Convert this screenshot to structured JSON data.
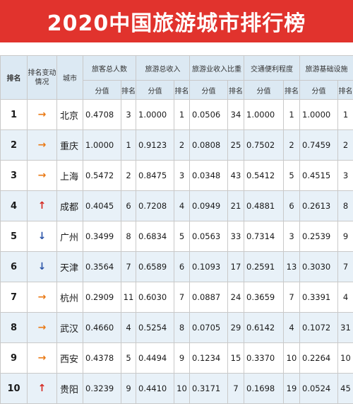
{
  "title": "2020中国旅游城市排行榜",
  "headers": {
    "rank": "排名",
    "change": "排名变动情况",
    "city": "城市",
    "groups": [
      "旅客总人数",
      "旅游总收入",
      "旅游业收入比重",
      "交通便利程度",
      "旅游基础设施"
    ],
    "score": "分值",
    "sub_rank": "排名"
  },
  "arrows": {
    "same": "→",
    "up": "↑",
    "down": "↓"
  },
  "colors": {
    "banner": "#e1332d",
    "header": "#dce9f3",
    "stripe": "#e8f1f8",
    "same": "#ea7a16",
    "up": "#d52a22",
    "down": "#2b54a8"
  },
  "rows": [
    {
      "rank": "1",
      "change": "same",
      "city": "北京",
      "metrics": [
        [
          "0.4708",
          "3"
        ],
        [
          "1.0000",
          "1"
        ],
        [
          "0.0506",
          "34"
        ],
        [
          "1.0000",
          "1"
        ],
        [
          "1.0000",
          "1"
        ]
      ]
    },
    {
      "rank": "2",
      "change": "same",
      "city": "重庆",
      "metrics": [
        [
          "1.0000",
          "1"
        ],
        [
          "0.9123",
          "2"
        ],
        [
          "0.0808",
          "25"
        ],
        [
          "0.7502",
          "2"
        ],
        [
          "0.7459",
          "2"
        ]
      ]
    },
    {
      "rank": "3",
      "change": "same",
      "city": "上海",
      "metrics": [
        [
          "0.5472",
          "2"
        ],
        [
          "0.8475",
          "3"
        ],
        [
          "0.0348",
          "43"
        ],
        [
          "0.5412",
          "5"
        ],
        [
          "0.4515",
          "3"
        ]
      ]
    },
    {
      "rank": "4",
      "change": "up",
      "city": "成都",
      "metrics": [
        [
          "0.4045",
          "6"
        ],
        [
          "0.7208",
          "4"
        ],
        [
          "0.0949",
          "21"
        ],
        [
          "0.4881",
          "6"
        ],
        [
          "0.2613",
          "8"
        ]
      ]
    },
    {
      "rank": "5",
      "change": "down",
      "city": "广州",
      "metrics": [
        [
          "0.3499",
          "8"
        ],
        [
          "0.6834",
          "5"
        ],
        [
          "0.0563",
          "33"
        ],
        [
          "0.7314",
          "3"
        ],
        [
          "0.2539",
          "9"
        ]
      ]
    },
    {
      "rank": "6",
      "change": "down",
      "city": "天津",
      "metrics": [
        [
          "0.3564",
          "7"
        ],
        [
          "0.6589",
          "6"
        ],
        [
          "0.1093",
          "17"
        ],
        [
          "0.2591",
          "13"
        ],
        [
          "0.3030",
          "7"
        ]
      ]
    },
    {
      "rank": "7",
      "change": "same",
      "city": "杭州",
      "metrics": [
        [
          "0.2909",
          "11"
        ],
        [
          "0.6030",
          "7"
        ],
        [
          "0.0887",
          "24"
        ],
        [
          "0.3659",
          "7"
        ],
        [
          "0.3391",
          "4"
        ]
      ]
    },
    {
      "rank": "8",
      "change": "same",
      "city": "武汉",
      "metrics": [
        [
          "0.4660",
          "4"
        ],
        [
          "0.5254",
          "8"
        ],
        [
          "0.0705",
          "29"
        ],
        [
          "0.6142",
          "4"
        ],
        [
          "0.1072",
          "31"
        ]
      ]
    },
    {
      "rank": "9",
      "change": "same",
      "city": "西安",
      "metrics": [
        [
          "0.4378",
          "5"
        ],
        [
          "0.4494",
          "9"
        ],
        [
          "0.1234",
          "15"
        ],
        [
          "0.3370",
          "10"
        ],
        [
          "0.2264",
          "10"
        ]
      ]
    },
    {
      "rank": "10",
      "change": "up",
      "city": "贵阳",
      "metrics": [
        [
          "0.3239",
          "9"
        ],
        [
          "0.4410",
          "10"
        ],
        [
          "0.3171",
          "7"
        ],
        [
          "0.1698",
          "19"
        ],
        [
          "0.0524",
          "45"
        ]
      ]
    }
  ]
}
